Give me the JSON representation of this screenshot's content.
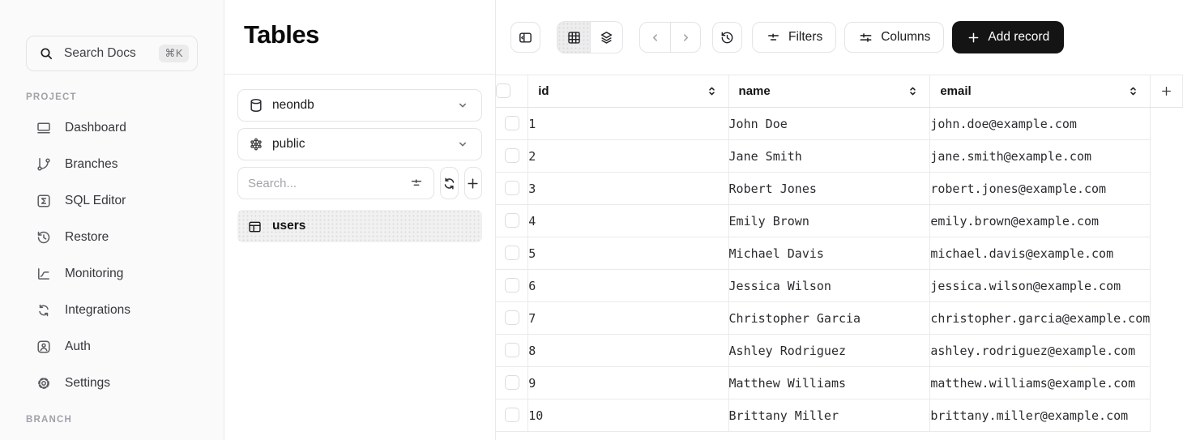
{
  "sidebar": {
    "search": {
      "label": "Search Docs",
      "shortcut": "⌘K"
    },
    "section_project": "PROJECT",
    "section_branch": "BRANCH",
    "nav": [
      {
        "label": "Dashboard",
        "icon": "dashboard-icon"
      },
      {
        "label": "Branches",
        "icon": "branches-icon"
      },
      {
        "label": "SQL Editor",
        "icon": "sql-editor-icon"
      },
      {
        "label": "Restore",
        "icon": "restore-icon"
      },
      {
        "label": "Monitoring",
        "icon": "monitoring-icon"
      },
      {
        "label": "Integrations",
        "icon": "integrations-icon"
      },
      {
        "label": "Auth",
        "icon": "auth-icon"
      },
      {
        "label": "Settings",
        "icon": "settings-icon"
      }
    ]
  },
  "tables_panel": {
    "title": "Tables",
    "database": {
      "value": "neondb",
      "icon": "database-icon"
    },
    "schema": {
      "value": "public",
      "icon": "schema-icon"
    },
    "search_placeholder": "Search...",
    "tables": [
      {
        "name": "users",
        "icon": "table-icon",
        "selected": true
      }
    ]
  },
  "toolbar": {
    "filters_label": "Filters",
    "columns_label": "Columns",
    "add_record_label": "Add record"
  },
  "data_table": {
    "columns": [
      "id",
      "name",
      "email"
    ],
    "rows": [
      {
        "id": "1",
        "name": "John Doe",
        "email": "john.doe@example.com"
      },
      {
        "id": "2",
        "name": "Jane Smith",
        "email": "jane.smith@example.com"
      },
      {
        "id": "3",
        "name": "Robert Jones",
        "email": "robert.jones@example.com"
      },
      {
        "id": "4",
        "name": "Emily Brown",
        "email": "emily.brown@example.com"
      },
      {
        "id": "5",
        "name": "Michael Davis",
        "email": "michael.davis@example.com"
      },
      {
        "id": "6",
        "name": "Jessica Wilson",
        "email": "jessica.wilson@example.com"
      },
      {
        "id": "7",
        "name": "Christopher Garcia",
        "email": "christopher.garcia@example.com"
      },
      {
        "id": "8",
        "name": "Ashley Rodriguez",
        "email": "ashley.rodriguez@example.com"
      },
      {
        "id": "9",
        "name": "Matthew Williams",
        "email": "matthew.williams@example.com"
      },
      {
        "id": "10",
        "name": "Brittany Miller",
        "email": "brittany.miller@example.com"
      }
    ]
  },
  "colors": {
    "primary_button_bg": "#141414",
    "primary_button_text": "#ffffff",
    "selected_item_bg": "#f1f1f1"
  }
}
